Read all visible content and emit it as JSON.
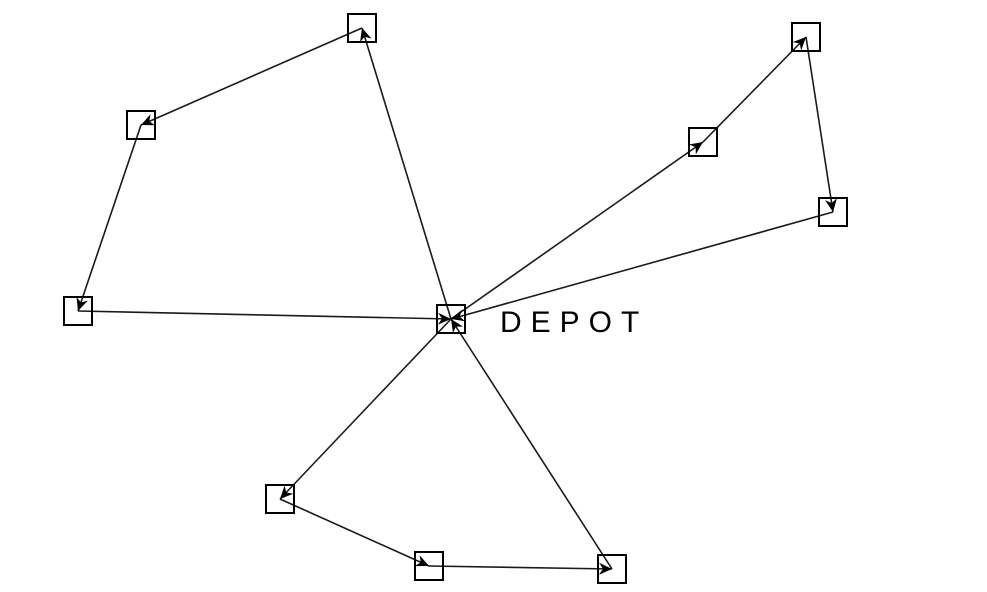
{
  "diagram": {
    "depot_label": "DEPOT",
    "colors": {
      "edge": "#1a1a1a",
      "node_stroke": "#000000",
      "background": "#ffffff"
    },
    "nodes": [
      {
        "id": "depot",
        "is_depot": true
      },
      {
        "id": "n1"
      },
      {
        "id": "n2"
      },
      {
        "id": "n3"
      },
      {
        "id": "n4"
      },
      {
        "id": "n5"
      },
      {
        "id": "n6"
      },
      {
        "id": "n7"
      },
      {
        "id": "n8"
      },
      {
        "id": "n9"
      }
    ],
    "routes": [
      {
        "stops": [
          "depot",
          "n1",
          "n2",
          "n3",
          "depot"
        ]
      },
      {
        "stops": [
          "depot",
          "n4",
          "n5",
          "n6",
          "depot"
        ]
      },
      {
        "stops": [
          "depot",
          "n7",
          "n8",
          "n9",
          "depot"
        ]
      }
    ]
  }
}
